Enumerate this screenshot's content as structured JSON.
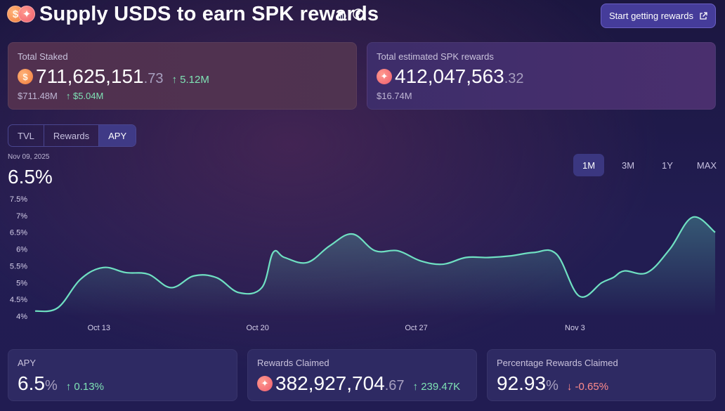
{
  "header": {
    "title": "Supply USDS to earn SPK rewards",
    "cta_label": "Start getting rewards"
  },
  "total_staked": {
    "label": "Total Staked",
    "amount": "711,625,151",
    "decimals": ".73",
    "delta": "5.12M",
    "usd": "$711.48M",
    "usd_delta": "$5.04M"
  },
  "total_rewards": {
    "label": "Total estimated SPK rewards",
    "amount": "412,047,563",
    "decimals": ".32",
    "usd": "$16.74M"
  },
  "tabs": [
    "TVL",
    "Rewards",
    "APY"
  ],
  "active_tab": "APY",
  "selected_point": {
    "date": "Nov 09, 2025",
    "value": "6.5%"
  },
  "ranges": [
    "1M",
    "3M",
    "1Y",
    "MAX"
  ],
  "active_range": "1M",
  "colors": {
    "line": "#6fe0c2",
    "accent": "#453c9a",
    "up": "#7fe3b5",
    "down": "#ff8b8b"
  },
  "chart_data": {
    "type": "area",
    "xlabel": "",
    "ylabel": "",
    "ylim": [
      4,
      7.5
    ],
    "y_ticks": [
      "7.5%",
      "7%",
      "6.5%",
      "6%",
      "5.5%",
      "5%",
      "4.5%",
      "4%"
    ],
    "x_ticks": [
      {
        "label": "Oct 13",
        "x": 3
      },
      {
        "label": "Oct 20",
        "x": 10
      },
      {
        "label": "Oct 27",
        "x": 17
      },
      {
        "label": "Nov 3",
        "x": 24
      }
    ],
    "x": [
      0,
      1,
      2,
      3,
      4,
      5,
      6,
      7,
      8,
      9,
      10,
      10.5,
      11,
      12,
      13,
      14,
      15,
      16,
      17,
      18,
      19,
      20,
      21,
      22,
      23,
      24,
      25,
      25.5,
      26,
      27,
      28,
      29,
      30
    ],
    "values": [
      4.15,
      4.25,
      5.1,
      5.45,
      5.3,
      5.25,
      4.85,
      5.2,
      5.15,
      4.7,
      4.85,
      5.9,
      5.75,
      5.6,
      6.1,
      6.45,
      5.95,
      5.95,
      5.65,
      5.55,
      5.75,
      5.75,
      5.8,
      5.9,
      5.85,
      4.6,
      5.0,
      5.15,
      5.35,
      5.3,
      6.0,
      6.95,
      6.5
    ]
  },
  "apy_card": {
    "label": "APY",
    "value": "6.5",
    "unit": "%",
    "delta": "0.13%"
  },
  "claimed_card": {
    "label": "Rewards Claimed",
    "amount": "382,927,704",
    "decimals": ".67",
    "delta": "239.47K"
  },
  "pct_card": {
    "label": "Percentage Rewards Claimed",
    "value": "92.93",
    "unit": "%",
    "delta": "-0.65%"
  }
}
